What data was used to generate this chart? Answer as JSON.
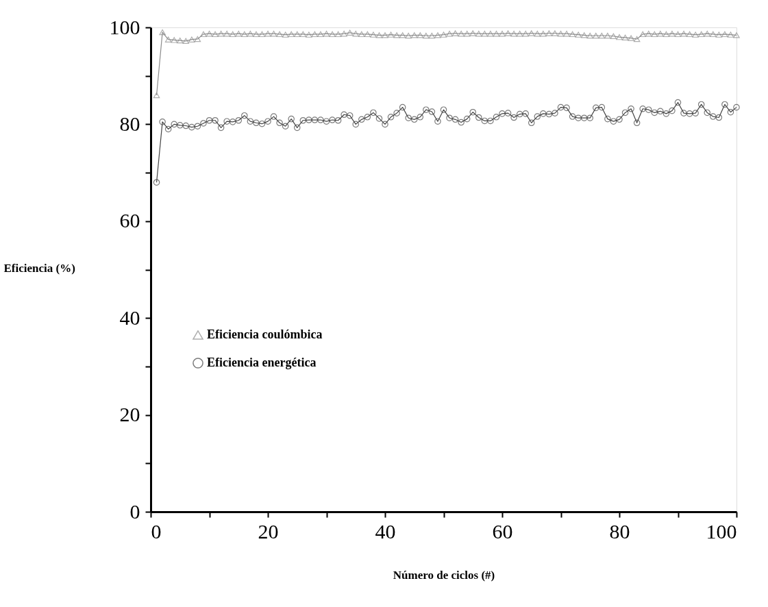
{
  "chart_data": {
    "type": "line",
    "xlabel": "Número de ciclos (#)",
    "ylabel": "Eficiencia (%)",
    "x": [
      1,
      2,
      3,
      4,
      5,
      6,
      7,
      8,
      9,
      10,
      11,
      12,
      13,
      14,
      15,
      16,
      17,
      18,
      19,
      20,
      21,
      22,
      23,
      24,
      25,
      26,
      27,
      28,
      29,
      30,
      31,
      32,
      33,
      34,
      35,
      36,
      37,
      38,
      39,
      40,
      41,
      42,
      43,
      44,
      45,
      46,
      47,
      48,
      49,
      50,
      51,
      52,
      53,
      54,
      55,
      56,
      57,
      58,
      59,
      60,
      61,
      62,
      63,
      64,
      65,
      66,
      67,
      68,
      69,
      70,
      71,
      72,
      73,
      74,
      75,
      76,
      77,
      78,
      79,
      80,
      81,
      82,
      83,
      84,
      85,
      86,
      87,
      88,
      89,
      90,
      91,
      92,
      93,
      94,
      95,
      96,
      97,
      98,
      99,
      100
    ],
    "series": [
      {
        "name": "Eficiencia coulómbica",
        "color": "#8c8c8c",
        "marker": "triangle",
        "values": [
          86,
          99,
          97.5,
          97.4,
          97.3,
          97.2,
          97.5,
          97.6,
          98.6,
          98.7,
          98.6,
          98.7,
          98.7,
          98.6,
          98.7,
          98.6,
          98.7,
          98.6,
          98.6,
          98.7,
          98.7,
          98.6,
          98.5,
          98.6,
          98.6,
          98.6,
          98.5,
          98.6,
          98.6,
          98.7,
          98.6,
          98.6,
          98.7,
          98.9,
          98.7,
          98.6,
          98.6,
          98.5,
          98.4,
          98.4,
          98.5,
          98.4,
          98.4,
          98.3,
          98.4,
          98.4,
          98.3,
          98.3,
          98.4,
          98.5,
          98.7,
          98.8,
          98.7,
          98.7,
          98.8,
          98.7,
          98.7,
          98.7,
          98.7,
          98.7,
          98.8,
          98.7,
          98.7,
          98.7,
          98.8,
          98.7,
          98.7,
          98.8,
          98.8,
          98.7,
          98.7,
          98.6,
          98.5,
          98.4,
          98.3,
          98.3,
          98.3,
          98.3,
          98.2,
          98.0,
          97.9,
          97.8,
          97.6,
          98.6,
          98.7,
          98.6,
          98.7,
          98.6,
          98.7,
          98.6,
          98.7,
          98.6,
          98.5,
          98.6,
          98.7,
          98.6,
          98.5,
          98.6,
          98.5,
          98.4
        ]
      },
      {
        "name": "Eficiencia energética",
        "color": "#444444",
        "marker": "circle",
        "values": [
          68,
          80.5,
          79,
          80,
          79.8,
          79.7,
          79.4,
          79.6,
          80.2,
          80.8,
          80.8,
          79.3,
          80.6,
          80.5,
          80.8,
          81.8,
          80.6,
          80.3,
          80.1,
          80.6,
          81.6,
          80.3,
          79.6,
          81.1,
          79.3,
          80.8,
          80.9,
          80.9,
          80.9,
          80.6,
          80.9,
          80.8,
          82,
          81.8,
          80.0,
          81.0,
          81.5,
          82.4,
          81.2,
          80.0,
          81.5,
          82.3,
          83.5,
          81.3,
          81.0,
          81.5,
          83.0,
          82.6,
          80.6,
          83.0,
          81.3,
          81.0,
          80.4,
          81.1,
          82.5,
          81.4,
          80.7,
          80.7,
          81.5,
          82.2,
          82.3,
          81.4,
          82.1,
          82.2,
          80.3,
          81.6,
          82.2,
          82.1,
          82.3,
          83.5,
          83.4,
          81.6,
          81.3,
          81.3,
          81.3,
          83.4,
          83.5,
          81.1,
          80.6,
          81.0,
          82.4,
          83.2,
          80.3,
          83.2,
          83.0,
          82.4,
          82.7,
          82.2,
          82.8,
          84.5,
          82.3,
          82.2,
          82.3,
          84.1,
          82.4,
          81.6,
          81.4,
          84.1,
          82.5,
          83.5
        ]
      }
    ],
    "xlim": [
      0,
      100
    ],
    "ylim": [
      0,
      100
    ],
    "xticks": [
      0,
      {
        "value": 10,
        "label": null
      },
      20,
      {
        "value": 30,
        "label": null
      },
      40,
      {
        "value": 50,
        "label": null
      },
      60,
      {
        "value": 70,
        "label": null
      },
      80,
      {
        "value": 90,
        "label": null
      },
      100
    ],
    "yticks": [
      0,
      {
        "value": 10,
        "label": null
      },
      20,
      {
        "value": 30,
        "label": null
      },
      40,
      {
        "value": 50,
        "label": null
      },
      60,
      {
        "value": 70,
        "label": null
      },
      80,
      {
        "value": 90,
        "label": null
      },
      100
    ],
    "grid": false,
    "legend": "left",
    "line_style": "solid"
  }
}
